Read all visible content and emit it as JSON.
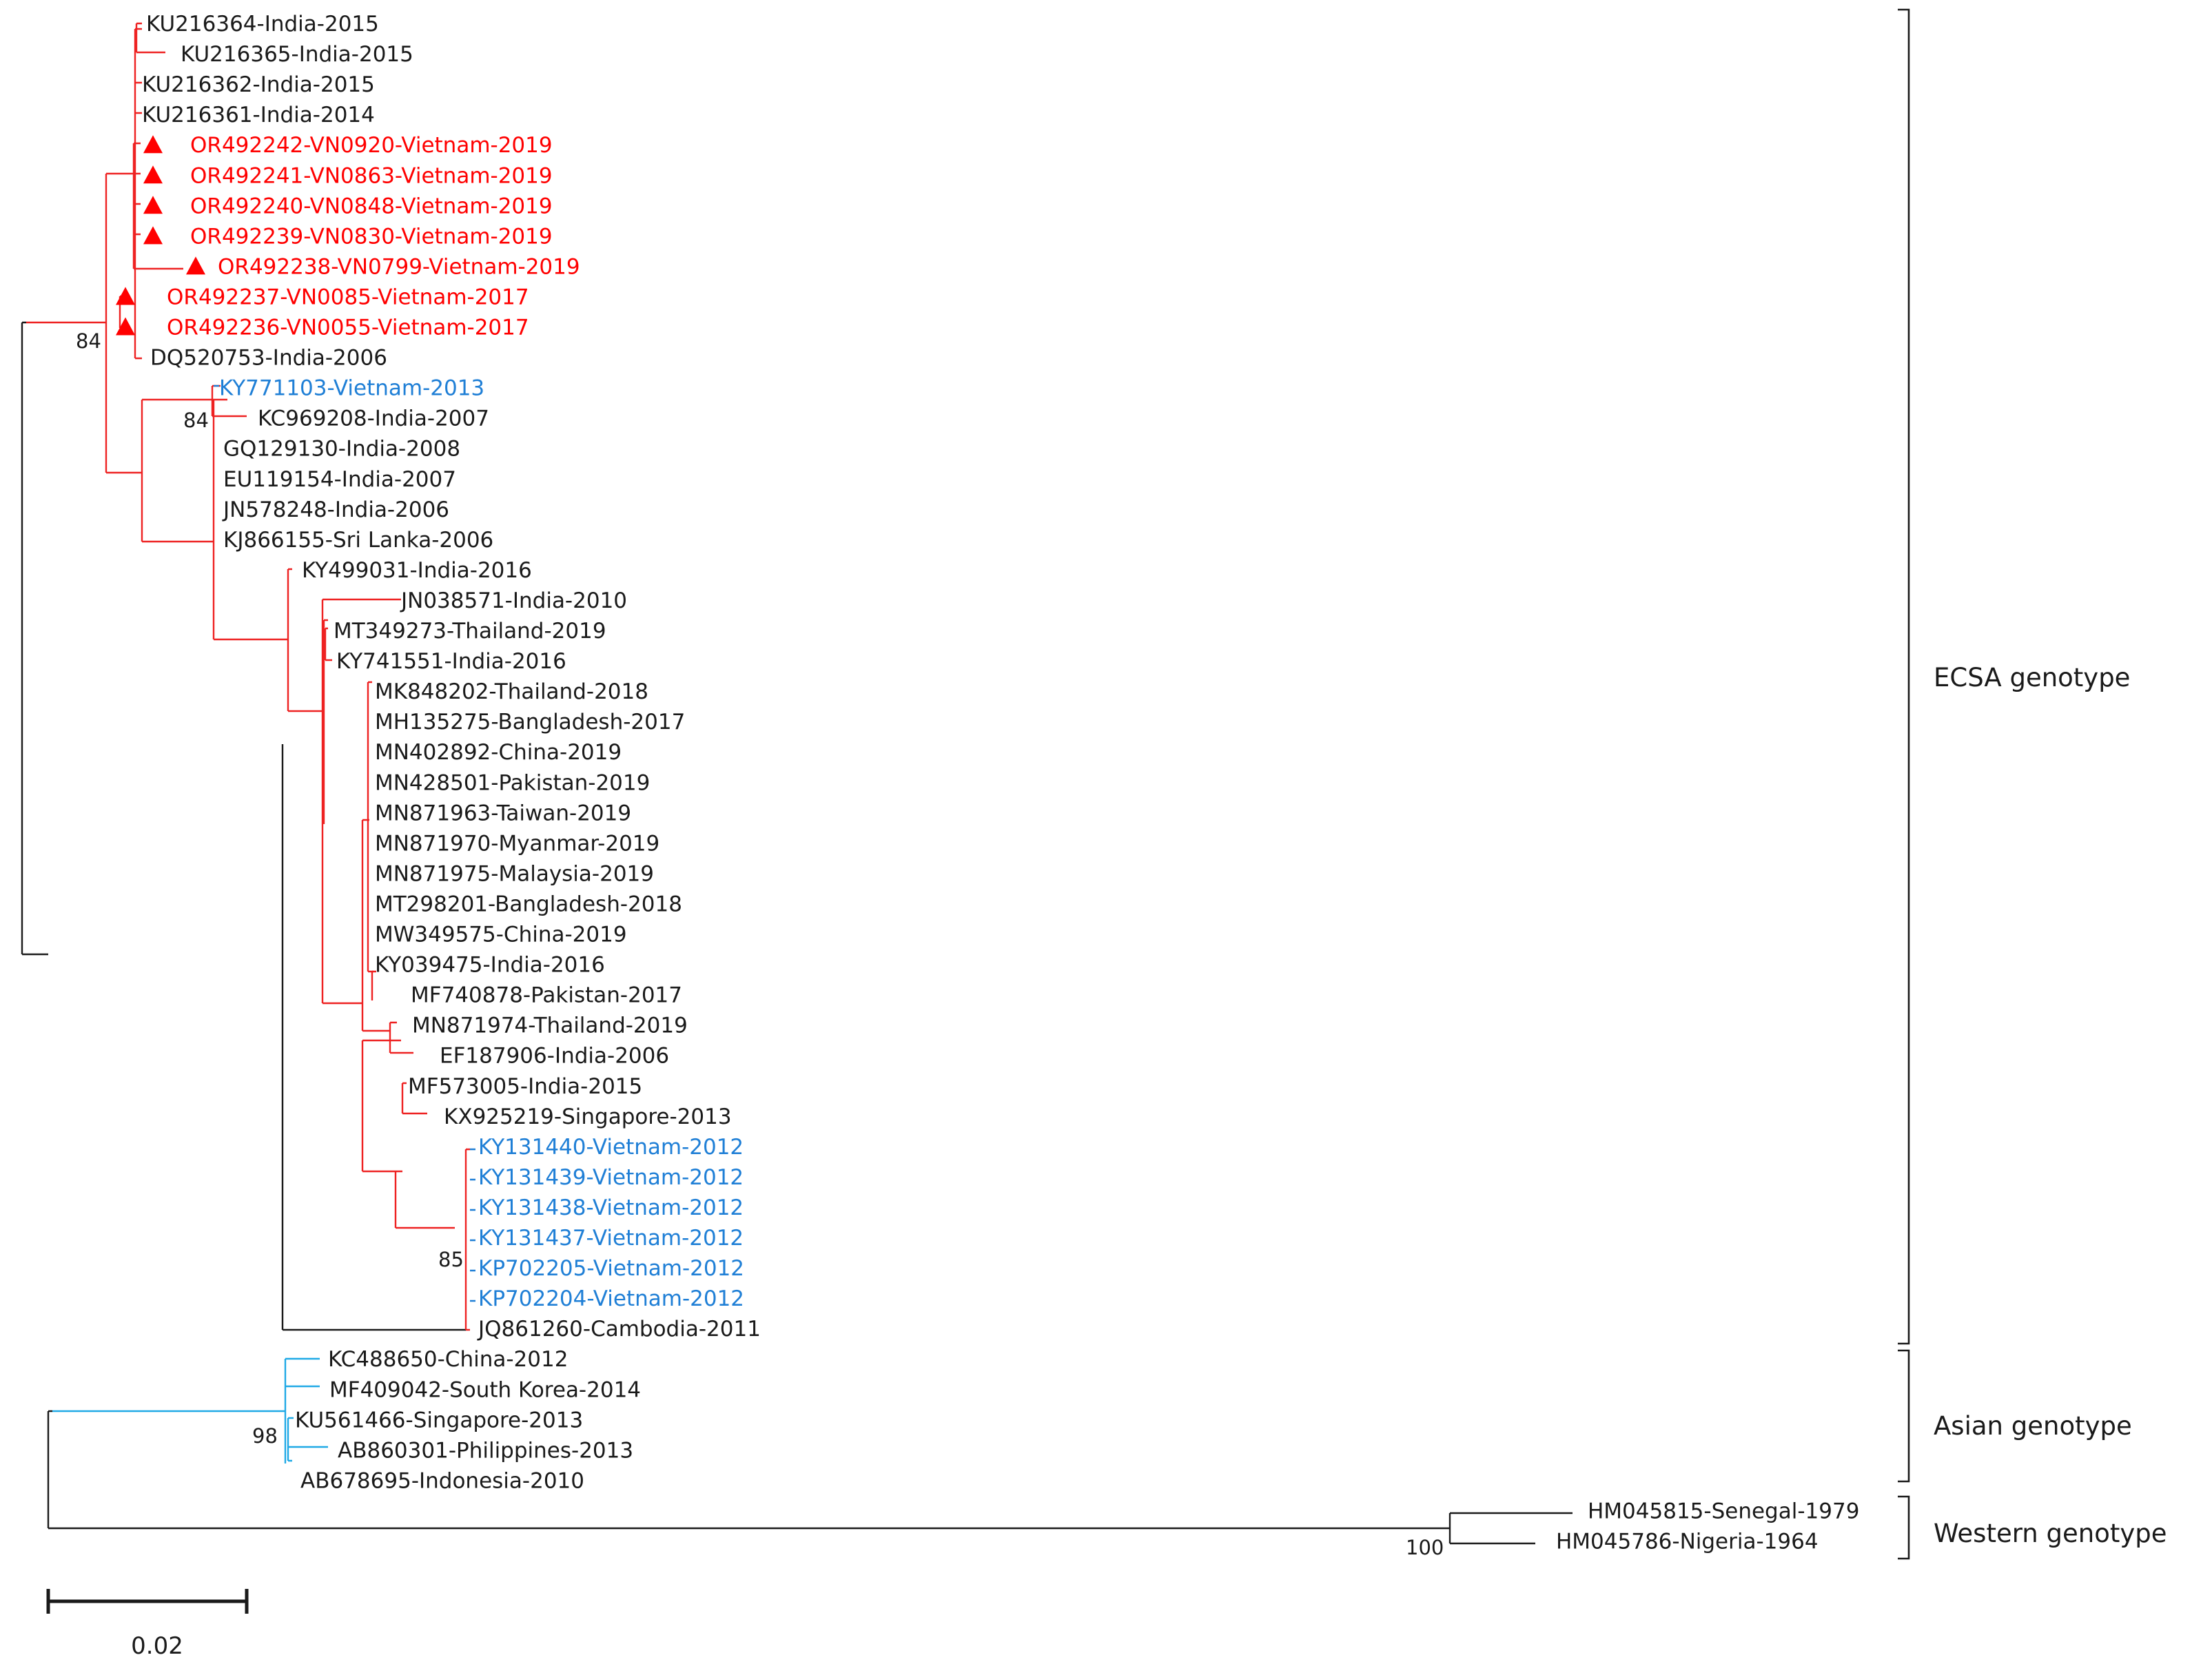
{
  "colors": {
    "vietnam_new": "#ff0000",
    "ecsa_branch": "#ee2222",
    "vietnam_previous": "#1f7fd6",
    "asian_branch": "#1fa9e6",
    "default": "#1a1a1a"
  },
  "tree": {
    "leaves": [
      {
        "label": "KU216364-India-2015",
        "group": "default"
      },
      {
        "label": "KU216365-India-2015",
        "group": "default"
      },
      {
        "label": "KU216362-India-2015",
        "group": "default"
      },
      {
        "label": "KU216361-India-2014",
        "group": "default"
      },
      {
        "label": "OR492242-VN0920-Vietnam-2019",
        "group": "vietnam_new",
        "marker": "triangle"
      },
      {
        "label": "OR492241-VN0863-Vietnam-2019",
        "group": "vietnam_new",
        "marker": "triangle"
      },
      {
        "label": "OR492240-VN0848-Vietnam-2019",
        "group": "vietnam_new",
        "marker": "triangle"
      },
      {
        "label": "OR492239-VN0830-Vietnam-2019",
        "group": "vietnam_new",
        "marker": "triangle"
      },
      {
        "label": "OR492238-VN0799-Vietnam-2019",
        "group": "vietnam_new",
        "marker": "triangle"
      },
      {
        "label": "OR492237-VN0085-Vietnam-2017",
        "group": "vietnam_new",
        "marker": "triangle"
      },
      {
        "label": "OR492236-VN0055-Vietnam-2017",
        "group": "vietnam_new",
        "marker": "triangle"
      },
      {
        "label": "DQ520753-India-2006",
        "group": "default"
      },
      {
        "label": "KY771103-Vietnam-2013",
        "group": "vietnam_previous"
      },
      {
        "label": "KC969208-India-2007",
        "group": "default"
      },
      {
        "label": "GQ129130-India-2008",
        "group": "default"
      },
      {
        "label": "EU119154-India-2007",
        "group": "default"
      },
      {
        "label": "JN578248-India-2006",
        "group": "default"
      },
      {
        "label": "KJ866155-Sri Lanka-2006",
        "group": "default"
      },
      {
        "label": "KY499031-India-2016",
        "group": "default"
      },
      {
        "label": "JN038571-India-2010",
        "group": "default"
      },
      {
        "label": "MT349273-Thailand-2019",
        "group": "default"
      },
      {
        "label": "KY741551-India-2016",
        "group": "default"
      },
      {
        "label": "MK848202-Thailand-2018",
        "group": "default"
      },
      {
        "label": "MH135275-Bangladesh-2017",
        "group": "default"
      },
      {
        "label": "MN402892-China-2019",
        "group": "default"
      },
      {
        "label": "MN428501-Pakistan-2019",
        "group": "default"
      },
      {
        "label": "MN871963-Taiwan-2019",
        "group": "default"
      },
      {
        "label": "MN871970-Myanmar-2019",
        "group": "default"
      },
      {
        "label": "MN871975-Malaysia-2019",
        "group": "default"
      },
      {
        "label": "MT298201-Bangladesh-2018",
        "group": "default"
      },
      {
        "label": "MW349575-China-2019",
        "group": "default"
      },
      {
        "label": "KY039475-India-2016",
        "group": "default"
      },
      {
        "label": "MF740878-Pakistan-2017",
        "group": "default"
      },
      {
        "label": "MN871974-Thailand-2019",
        "group": "default"
      },
      {
        "label": "EF187906-India-2006",
        "group": "default"
      },
      {
        "label": "MF573005-India-2015",
        "group": "default"
      },
      {
        "label": "KX925219-Singapore-2013",
        "group": "default"
      },
      {
        "label": "KY131440-Vietnam-2012",
        "group": "vietnam_previous"
      },
      {
        "label": "KY131439-Vietnam-2012",
        "group": "vietnam_previous"
      },
      {
        "label": "KY131438-Vietnam-2012",
        "group": "vietnam_previous"
      },
      {
        "label": "KY131437-Vietnam-2012",
        "group": "vietnam_previous"
      },
      {
        "label": "KP702205-Vietnam-2012",
        "group": "vietnam_previous"
      },
      {
        "label": "KP702204-Vietnam-2012",
        "group": "vietnam_previous"
      },
      {
        "label": "JQ861260-Cambodia-2011",
        "group": "default"
      },
      {
        "label": "KC488650-China-2012",
        "group": "default"
      },
      {
        "label": "MF409042-South Korea-2014",
        "group": "default"
      },
      {
        "label": "KU561466-Singapore-2013",
        "group": "default"
      },
      {
        "label": "AB860301-Philippines-2013",
        "group": "default"
      },
      {
        "label": "AB678695-Indonesia-2010",
        "group": "default"
      },
      {
        "label": "HM045815-Senegal-1979",
        "group": "default"
      },
      {
        "label": "HM045786-Nigeria-1964",
        "group": "default"
      }
    ],
    "bootstrap": [
      "84",
      "84",
      "85",
      "98",
      "100"
    ],
    "genotypes": [
      "ECSA genotype",
      "Asian genotype",
      "Western genotype"
    ],
    "scale_bar": "0.02"
  }
}
